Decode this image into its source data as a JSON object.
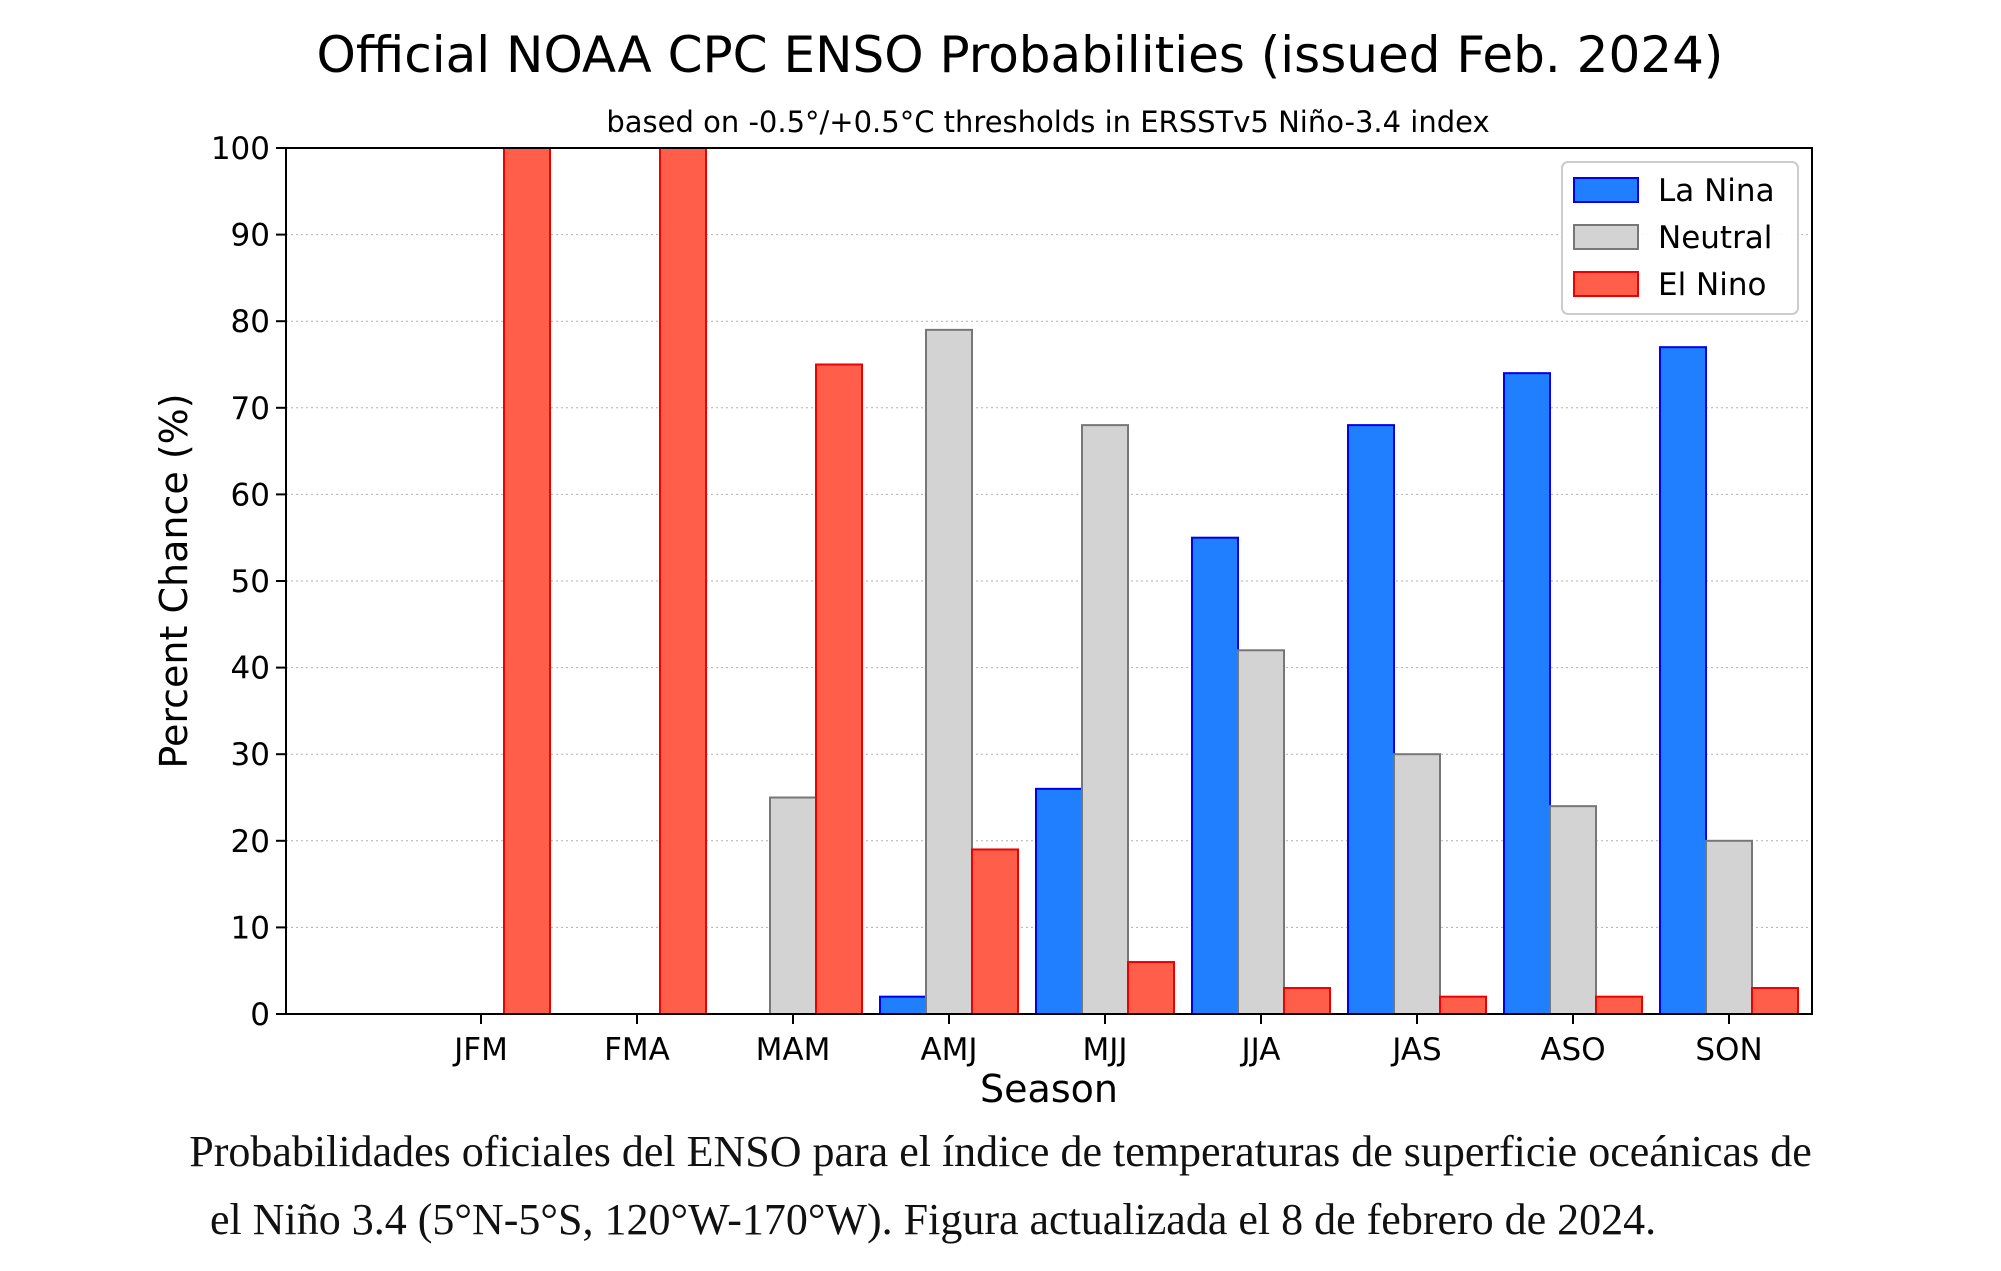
{
  "chart_data": {
    "type": "bar",
    "title": "Official NOAA CPC ENSO Probabilities (issued Feb. 2024)",
    "subtitle": "based on -0.5°/+0.5°C thresholds in ERSSTv5 Niño-3.4 index",
    "xlabel": "Season",
    "ylabel": "Percent Chance (%)",
    "ylim": [
      0,
      100
    ],
    "yticks": [
      0,
      10,
      20,
      30,
      40,
      50,
      60,
      70,
      80,
      90,
      100
    ],
    "grid": "horizontal dotted",
    "legend_position": "top-right",
    "categories": [
      "JFM",
      "FMA",
      "MAM",
      "AMJ",
      "MJJ",
      "JJA",
      "JAS",
      "ASO",
      "SON"
    ],
    "series": [
      {
        "name": "La Nina",
        "color": "#1f7fff",
        "edge": "#0000ee",
        "values": [
          0,
          0,
          0,
          2,
          26,
          55,
          68,
          74,
          77
        ]
      },
      {
        "name": "Neutral",
        "color": "#d3d3d3",
        "edge": "#777777",
        "values": [
          0,
          0,
          25,
          79,
          68,
          42,
          30,
          24,
          20
        ]
      },
      {
        "name": "El Nino",
        "color": "#ff5f4a",
        "edge": "#ee0000",
        "values": [
          100,
          100,
          75,
          19,
          6,
          3,
          2,
          2,
          3
        ]
      }
    ]
  },
  "caption": {
    "line1": "Probabilidades oficiales del ENSO para el índice de temperaturas de superficie oceánicas de",
    "line2": "el Niño 3.4 (5°N-5°S, 120°W-170°W). Figura actualizada el 8 de febrero de 2024."
  }
}
